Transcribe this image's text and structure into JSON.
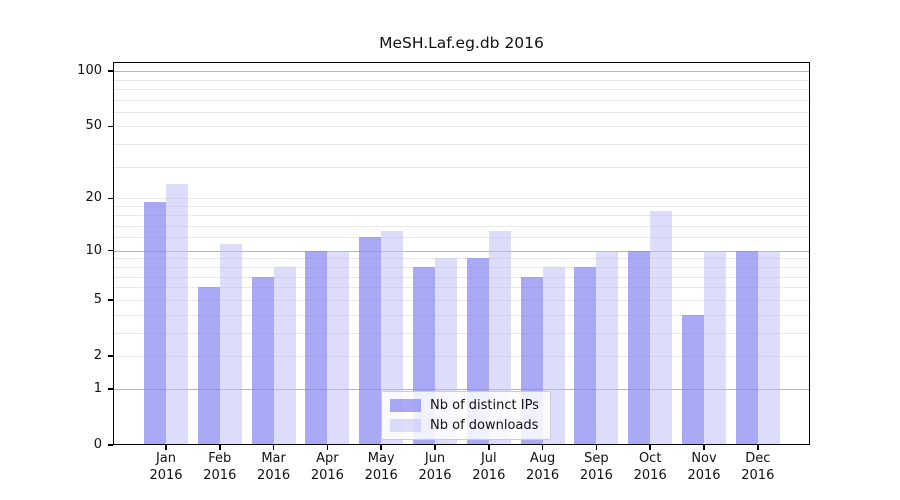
{
  "chart_data": {
    "type": "bar",
    "title": "MeSH.Laf.eg.db 2016",
    "year_label": "2016",
    "categories": [
      "Jan",
      "Feb",
      "Mar",
      "Apr",
      "May",
      "Jun",
      "Jul",
      "Aug",
      "Sep",
      "Oct",
      "Nov",
      "Dec"
    ],
    "series": [
      {
        "name": "Nb of distinct IPs",
        "color": "rgba(133,133,242,0.70)",
        "values": [
          19,
          6,
          7,
          10,
          12,
          8,
          9,
          7,
          8,
          10,
          4,
          10
        ]
      },
      {
        "name": "Nb of downloads",
        "color": "rgba(187,187,248,0.50)",
        "values": [
          24,
          11,
          8,
          10,
          13,
          9,
          13,
          8,
          10,
          17,
          10,
          10
        ]
      }
    ],
    "y_axis": {
      "scale": "log10(value+1)",
      "tick_values": [
        0,
        1,
        2,
        5,
        10,
        20,
        50,
        100
      ],
      "max_value": 112,
      "grid_major": [
        1,
        10,
        100
      ],
      "grid_minor": [
        2,
        3,
        4,
        5,
        6,
        7,
        8,
        9,
        12,
        14,
        16,
        18,
        20,
        30,
        40,
        50,
        60,
        70,
        80,
        90
      ]
    },
    "x_axis": {
      "tick_label_lines": 2
    },
    "legend": {
      "position": "bottom-center"
    },
    "colors": {
      "grid_minor": "#e8e8e8",
      "grid_major": "#b6b6b6",
      "axis": "#000000",
      "text": "#111111",
      "background": "#ffffff"
    }
  }
}
